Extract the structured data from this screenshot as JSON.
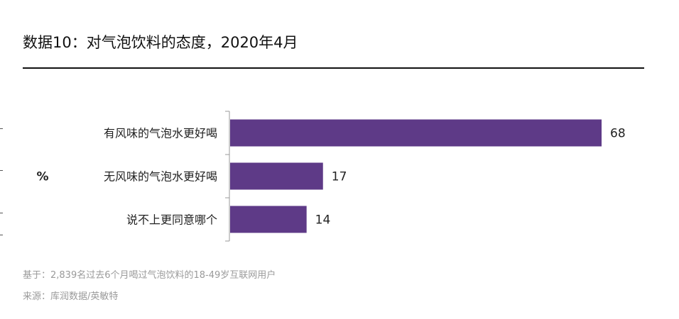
{
  "header": {
    "title": "数据10：对气泡饮料的态度，2020年4月"
  },
  "chart_data": {
    "type": "bar",
    "orientation": "horizontal",
    "title": "数据10：对气泡饮料的态度，2020年4月",
    "ylabel": "%",
    "categories": [
      "有风味的气泡水更好喝",
      "无风味的气泡水更好喝",
      "说不上更同意哪个"
    ],
    "values": [
      68,
      17,
      14
    ],
    "data_labels": [
      "68",
      "17",
      "14"
    ],
    "xlim": [
      0,
      70
    ],
    "bar_color": "#5e3a87",
    "grid": false,
    "legend": "none"
  },
  "footnotes": {
    "base": "基于：2,839名过去6个月喝过气泡饮料的18-49岁互联网用户",
    "source": "来源：库润数据/英敏特"
  }
}
